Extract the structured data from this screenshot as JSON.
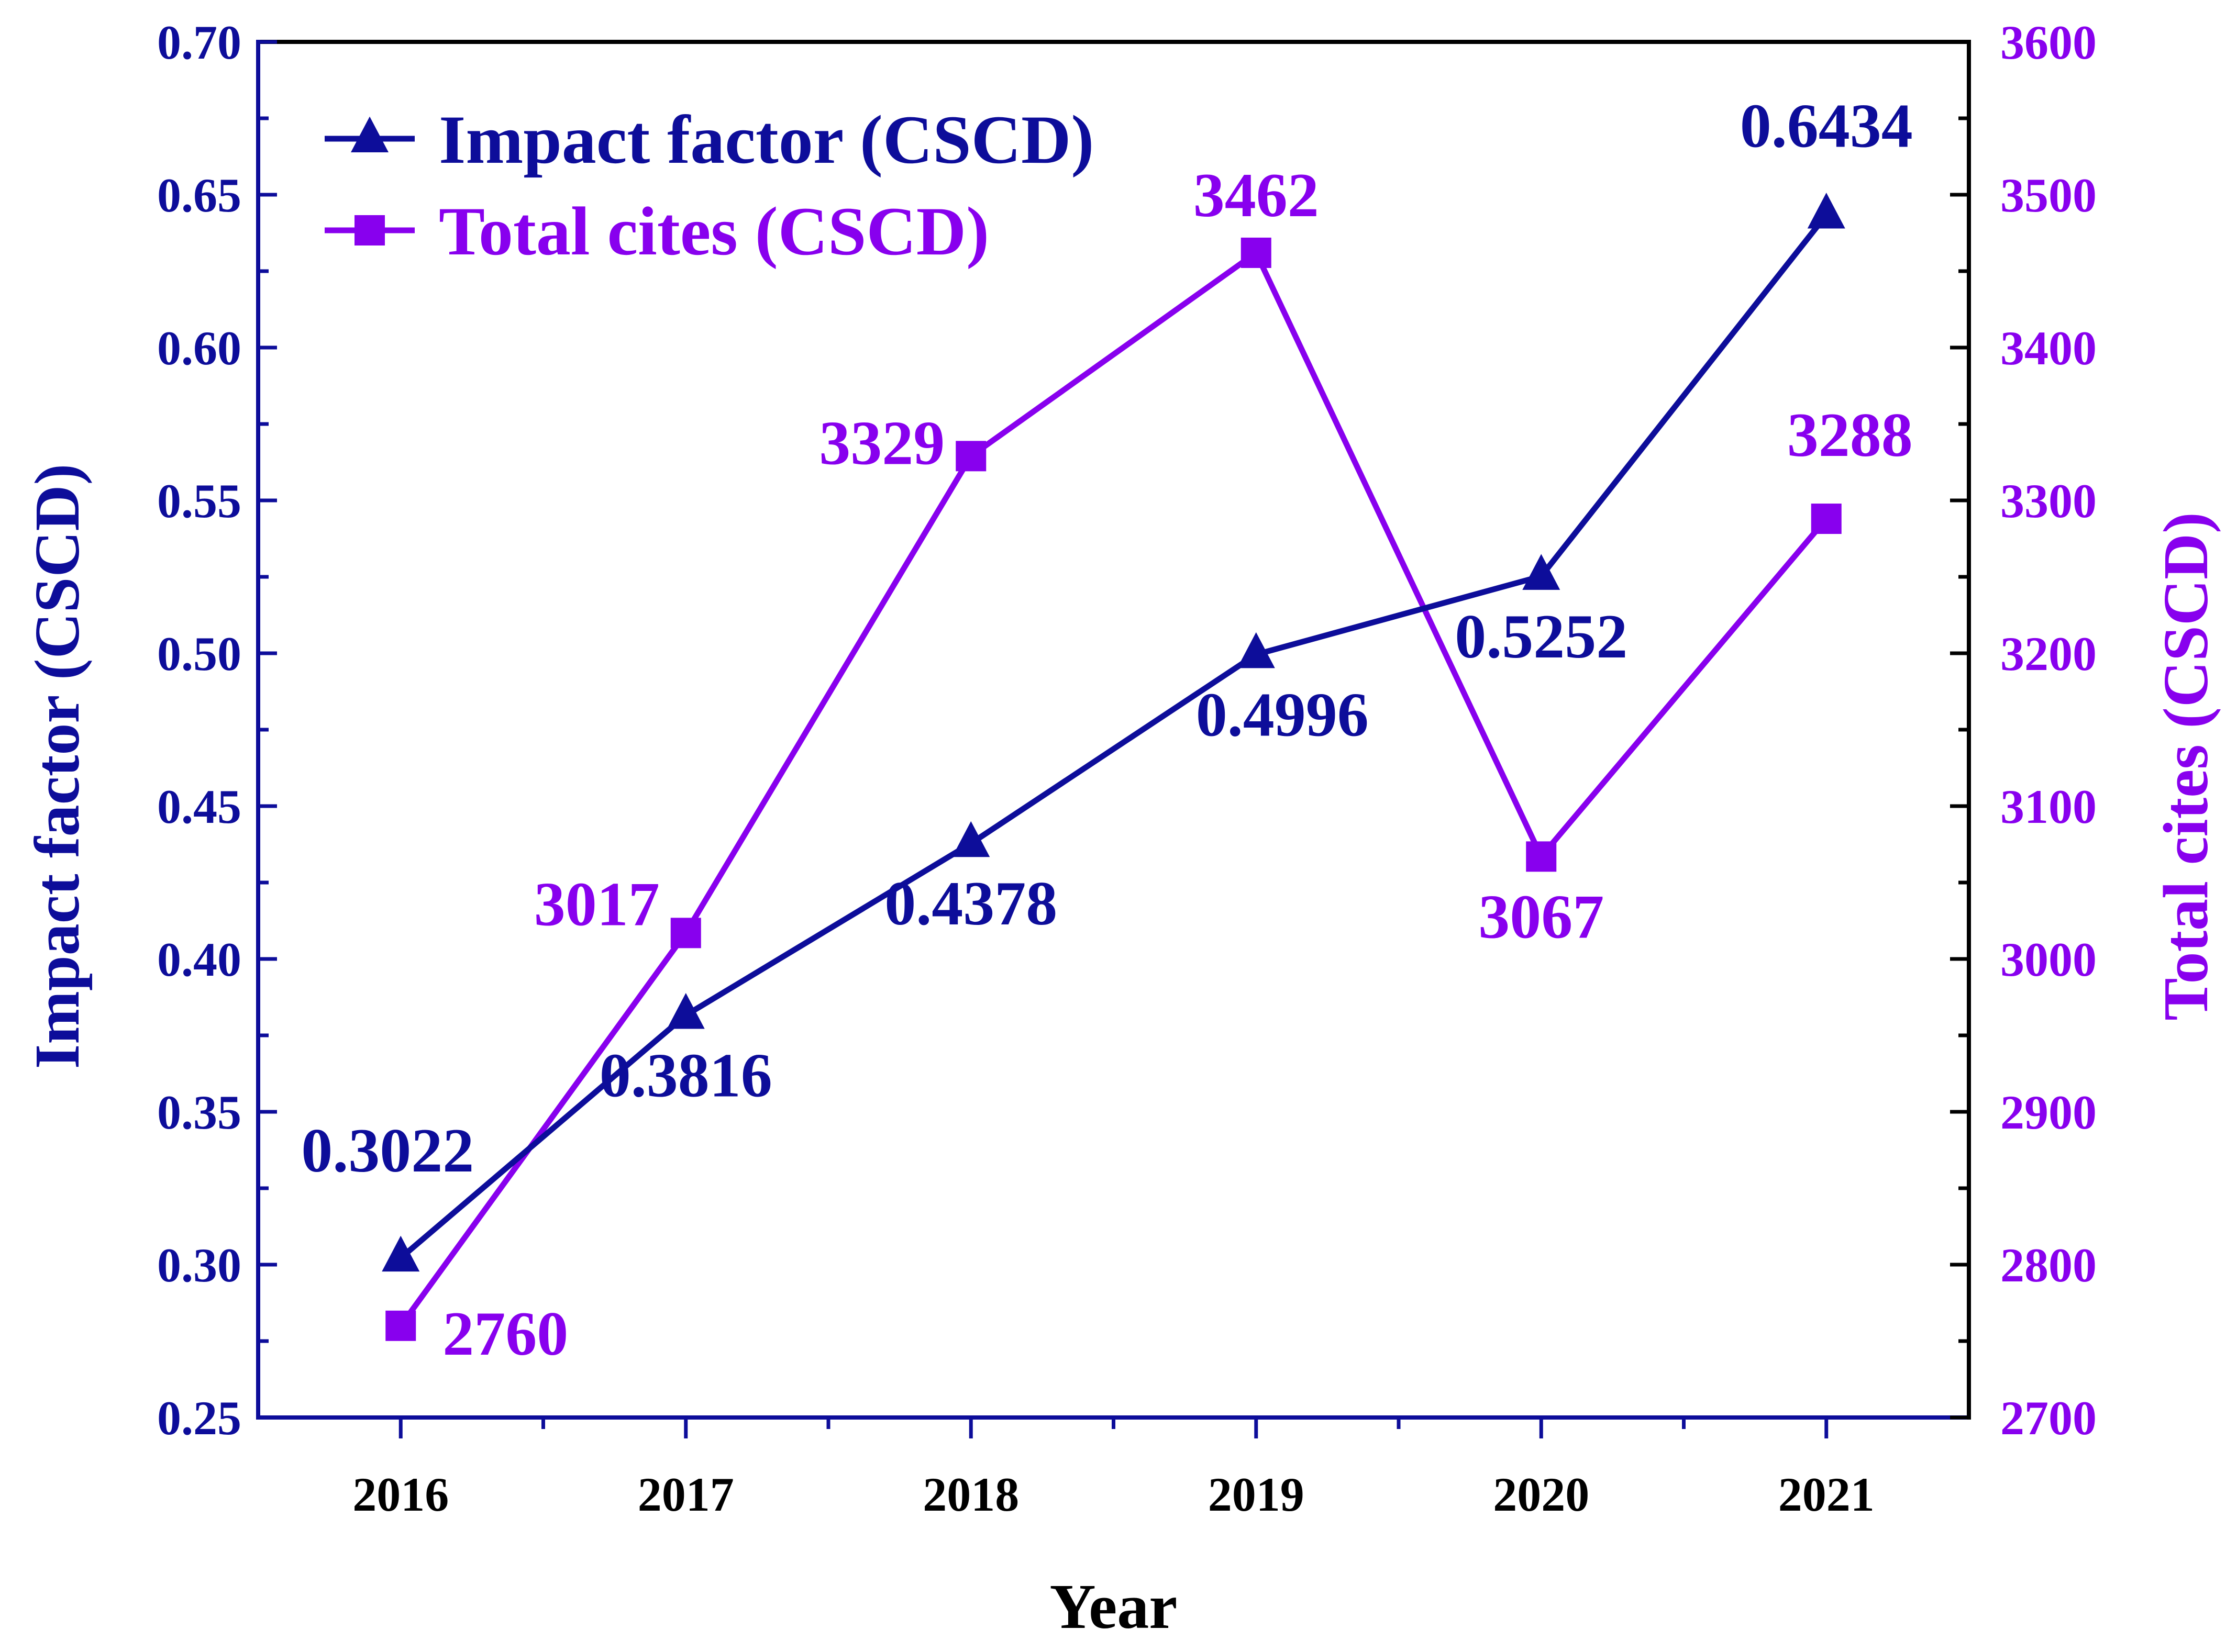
{
  "chart_data": {
    "type": "line",
    "title": "",
    "xlabel": "Year",
    "ylabel_left": "Impact factor (CSCD)",
    "ylabel_right": "Total cites (CSCD)",
    "categories": [
      "2016",
      "2017",
      "2018",
      "2019",
      "2020",
      "2021"
    ],
    "y_left_ticks": [
      "0.25",
      "0.30",
      "0.35",
      "0.40",
      "0.45",
      "0.50",
      "0.55",
      "0.60",
      "0.65",
      "0.70"
    ],
    "y_right_ticks": [
      "2700",
      "2800",
      "2900",
      "3000",
      "3100",
      "3200",
      "3300",
      "3400",
      "3500",
      "3600"
    ],
    "ylim_left": [
      0.25,
      0.7
    ],
    "ylim_right": [
      2700,
      3600
    ],
    "grid": false,
    "legend_placement": "top-left",
    "series": [
      {
        "name": "Impact factor (CSCD)",
        "axis": "left",
        "marker": "triangle",
        "color": "#0d0d9a",
        "values": [
          0.3022,
          0.3816,
          0.4378,
          0.4996,
          0.5252,
          0.6434
        ],
        "labels": [
          "0.3022",
          "0.3816",
          "0.4378",
          "0.4996",
          "0.5252",
          "0.6434"
        ]
      },
      {
        "name": "Total cites (CSCD)",
        "axis": "right",
        "marker": "square",
        "color": "#8800ee",
        "values": [
          2760,
          3017,
          3329,
          3462,
          3067,
          3288
        ],
        "labels": [
          "2760",
          "3017",
          "3329",
          "3462",
          "3067",
          "3288"
        ]
      }
    ]
  },
  "colors": {
    "left_axis": "#0d0d9a",
    "right_axis": "#8800ee",
    "frame": "#000000"
  }
}
